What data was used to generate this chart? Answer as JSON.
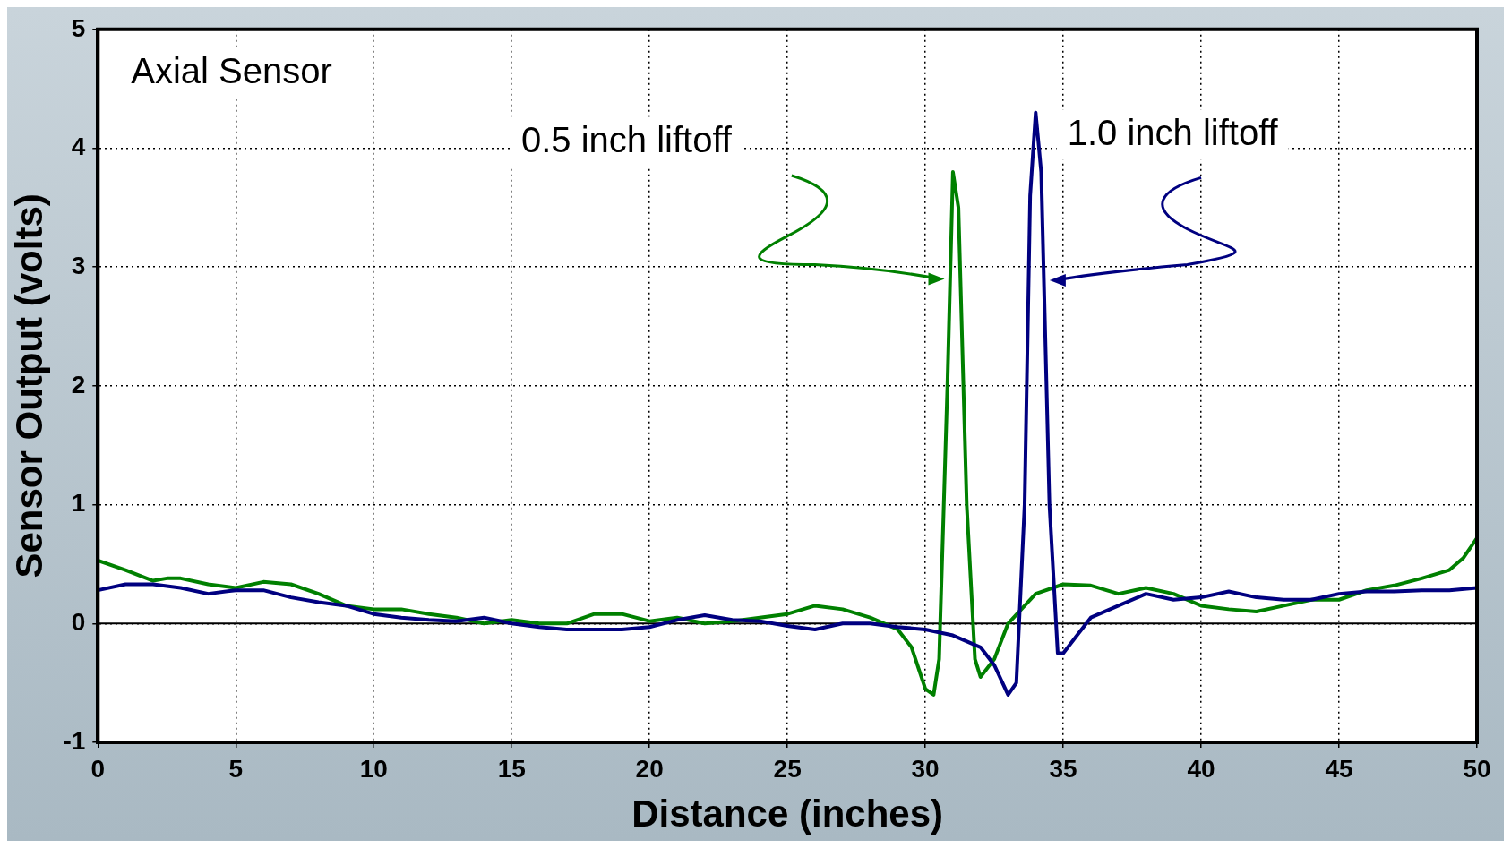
{
  "chart_data": {
    "type": "line",
    "xlabel": "Distance (inches)",
    "ylabel": "Sensor Output (volts)",
    "xlim": [
      0,
      50
    ],
    "xticks": [
      0,
      5,
      10,
      15,
      20,
      25,
      30,
      35,
      40,
      45,
      50
    ],
    "ylim": [
      -1,
      5
    ],
    "yticks": [
      -1,
      0,
      1,
      2,
      3,
      4,
      5
    ],
    "grid": true,
    "legend": false,
    "marker": "none",
    "line_style": "solid",
    "ref_lines": [
      {
        "axis": "y",
        "value": 0,
        "color": "#000000"
      }
    ],
    "annotations": [
      "Axial Sensor",
      "0.5 inch liftoff",
      "1.0 inch liftoff"
    ],
    "series": [
      {
        "color": "#000080",
        "x": [
          0,
          1,
          2,
          3,
          4,
          5,
          6,
          7,
          8,
          9,
          10,
          11,
          12,
          13,
          14,
          15,
          16,
          17,
          18,
          19,
          20,
          21,
          22,
          23,
          24,
          25,
          26,
          27,
          28,
          29,
          30,
          31,
          32,
          32.5,
          33,
          33.3,
          33.6,
          33.8,
          34,
          34.2,
          34.5,
          34.8,
          35,
          35.5,
          36,
          37,
          38,
          39,
          40,
          41,
          42,
          43,
          44,
          45,
          46,
          47,
          48,
          49,
          50
        ],
        "values": [
          0.28,
          0.33,
          0.33,
          0.3,
          0.25,
          0.28,
          0.28,
          0.22,
          0.18,
          0.15,
          0.08,
          0.05,
          0.03,
          0.02,
          0.05,
          0,
          -0.03,
          -0.05,
          -0.05,
          -0.05,
          -0.03,
          0.03,
          0.07,
          0.03,
          0.02,
          -0.02,
          -0.05,
          0,
          0,
          -0.03,
          -0.05,
          -0.1,
          -0.2,
          -0.35,
          -0.6,
          -0.5,
          1,
          3.6,
          4.3,
          3.8,
          1,
          -0.25,
          -0.25,
          -0.1,
          0.05,
          0.15,
          0.25,
          0.2,
          0.22,
          0.27,
          0.22,
          0.2,
          0.2,
          0.25,
          0.27,
          0.27,
          0.28,
          0.28,
          0.3
        ]
      },
      {
        "color": "#008000",
        "x": [
          0,
          1,
          2,
          2.5,
          3,
          4,
          5,
          6,
          7,
          8,
          9,
          10,
          11,
          12,
          13,
          14,
          15,
          16,
          17,
          18,
          19,
          20,
          21,
          22,
          23,
          24,
          25,
          26,
          27,
          28,
          29,
          29.5,
          30,
          30.3,
          30.5,
          30.8,
          31,
          31.2,
          31.5,
          31.8,
          32,
          32.5,
          33,
          34,
          35,
          36,
          37,
          38,
          39,
          40,
          41,
          42,
          43,
          44,
          45,
          46,
          47,
          48,
          49,
          49.5,
          50
        ],
        "values": [
          0.53,
          0.45,
          0.36,
          0.38,
          0.38,
          0.33,
          0.3,
          0.35,
          0.33,
          0.25,
          0.15,
          0.12,
          0.12,
          0.08,
          0.05,
          0,
          0.03,
          0,
          0,
          0.08,
          0.08,
          0.02,
          0.05,
          0,
          0.02,
          0.05,
          0.08,
          0.15,
          0.12,
          0.05,
          -0.05,
          -0.2,
          -0.55,
          -0.6,
          -0.3,
          2,
          3.8,
          3.5,
          1,
          -0.3,
          -0.45,
          -0.3,
          0,
          0.25,
          0.33,
          0.32,
          0.25,
          0.3,
          0.25,
          0.15,
          0.12,
          0.1,
          0.15,
          0.2,
          0.2,
          0.28,
          0.32,
          0.38,
          0.45,
          0.55,
          0.72
        ]
      }
    ]
  }
}
